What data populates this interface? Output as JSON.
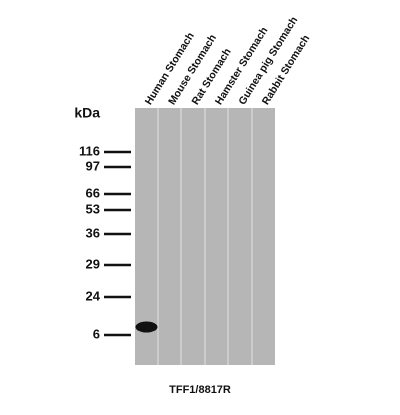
{
  "lanes": [
    "Human Stomach",
    "Mouse Stomach",
    "Rat Stomach",
    "Hamster Stomach",
    "Guinea pig Stomach",
    "Rabbit Stomach"
  ],
  "unit": "kDa",
  "markers": [
    "116",
    "97",
    "66",
    "53",
    "36",
    "29",
    "24",
    "6"
  ],
  "caption": "TFF1/8817R"
}
